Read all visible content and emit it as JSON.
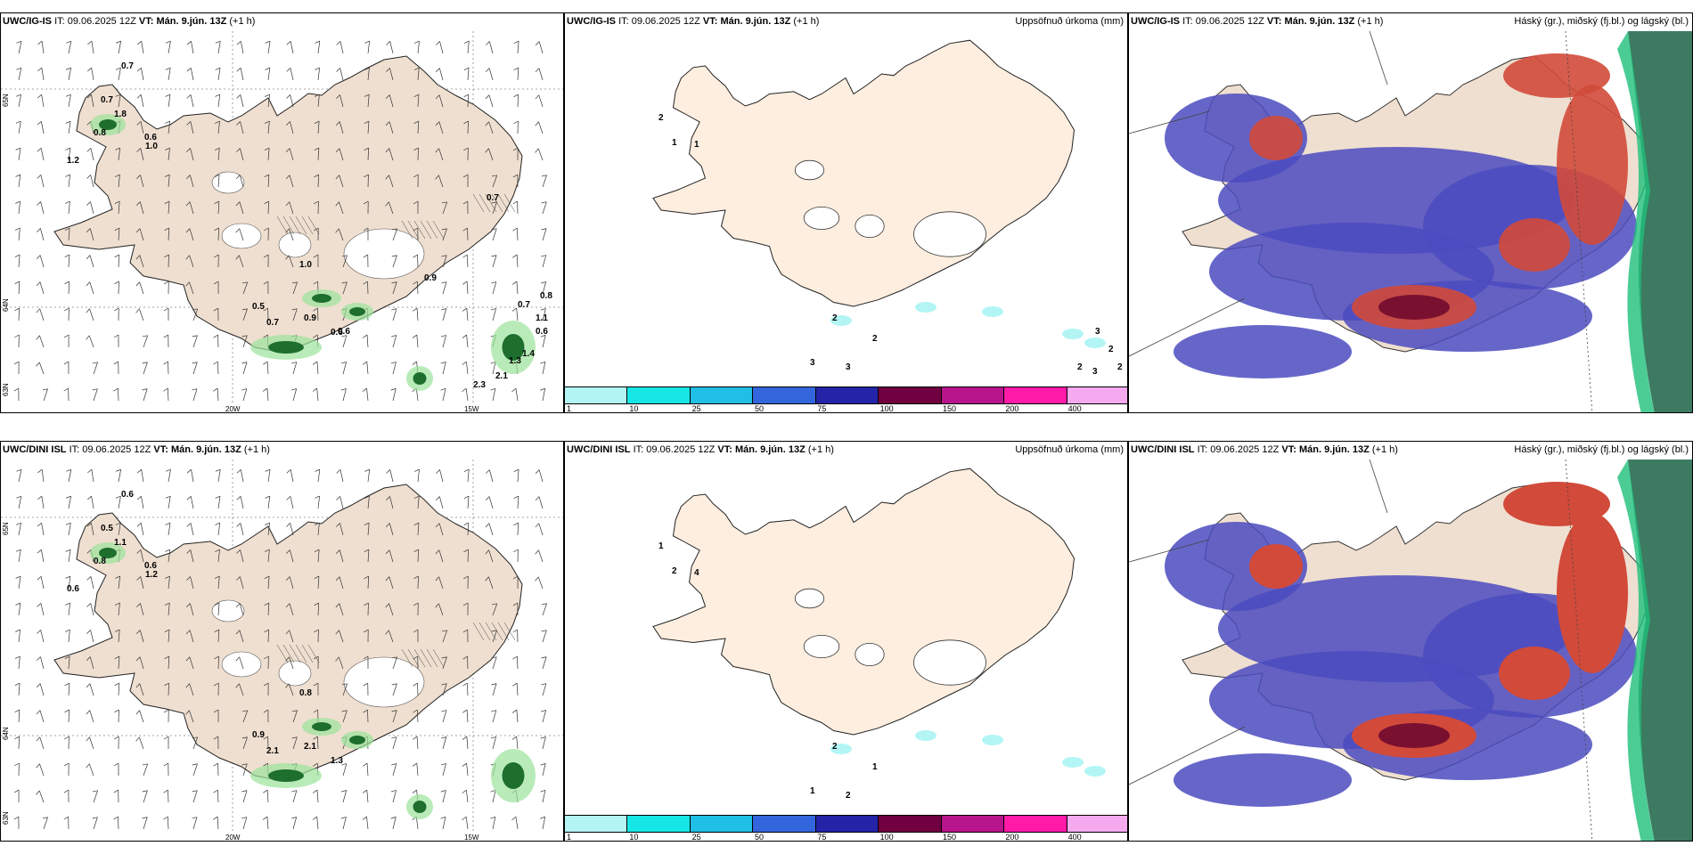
{
  "rows": [
    {
      "model_code": "UWC/IG-IS",
      "it_label": "IT:",
      "it_value": "09.06.2025 12Z",
      "vt_label": "VT:",
      "vt_value": "Mán. 9.jún. 13Z",
      "offset": "(+1 h)",
      "wind_labels": [
        "0.7",
        "0.7",
        "0.8",
        "1.2",
        "1.8",
        "0.6",
        "1.0",
        "0.5",
        "0.7",
        "1.0",
        "0.9",
        "0.6",
        "0.6",
        "0.9",
        "0.7",
        "0.8",
        "0.7",
        "0.6",
        "1.4",
        "2.3",
        "2.1",
        "1.1",
        "1.3"
      ],
      "precip_labels": [
        "2",
        "1",
        "1",
        "2",
        "2",
        "3",
        "3",
        "2",
        "3",
        "2",
        "3",
        "2"
      ],
      "lon_labels": [
        "20W",
        "15W"
      ],
      "lat_labels": [
        "65N",
        "64N",
        "63N"
      ]
    },
    {
      "model_code": "UWC/DINI ISL",
      "it_label": "IT:",
      "it_value": "09.06.2025 12Z",
      "vt_label": "VT:",
      "vt_value": "Mán. 9.jún. 13Z",
      "offset": "(+1 h)",
      "wind_labels": [
        "0.6",
        "0.5",
        "0.8",
        "0.6",
        "1.1",
        "0.6",
        "1.2",
        "0.9",
        "2.1",
        "0.8",
        "2.1",
        "1.3"
      ],
      "precip_labels": [
        "1",
        "2",
        "4",
        "2",
        "1",
        "1",
        "2"
      ],
      "lon_labels": [
        "20W",
        "15W"
      ],
      "lat_labels": [
        "65N",
        "64N",
        "63N"
      ]
    }
  ],
  "precip_panel_title": "Uppsöfnuð úrkoma (mm)",
  "cloud_panel_title": "Háský (gr.), miðský (fj.bl.) og lágský (bl.)",
  "colorbar": {
    "ticks": [
      "1",
      "10",
      "25",
      "50",
      "75",
      "100",
      "150",
      "200",
      "400"
    ],
    "colors": [
      "#b3f5f5",
      "#17e6e6",
      "#1fbfe6",
      "#3366dd",
      "#2424a8",
      "#700040",
      "#b8148c",
      "#ff1aa8",
      "#f5aaf0"
    ]
  },
  "colors": {
    "land_wind": "#efdfd0",
    "land_precip": "#fdeee0",
    "cloud_high": "#3d7a62",
    "cloud_mid": "#d24a3a",
    "cloud_low": "#4b4bbf"
  }
}
